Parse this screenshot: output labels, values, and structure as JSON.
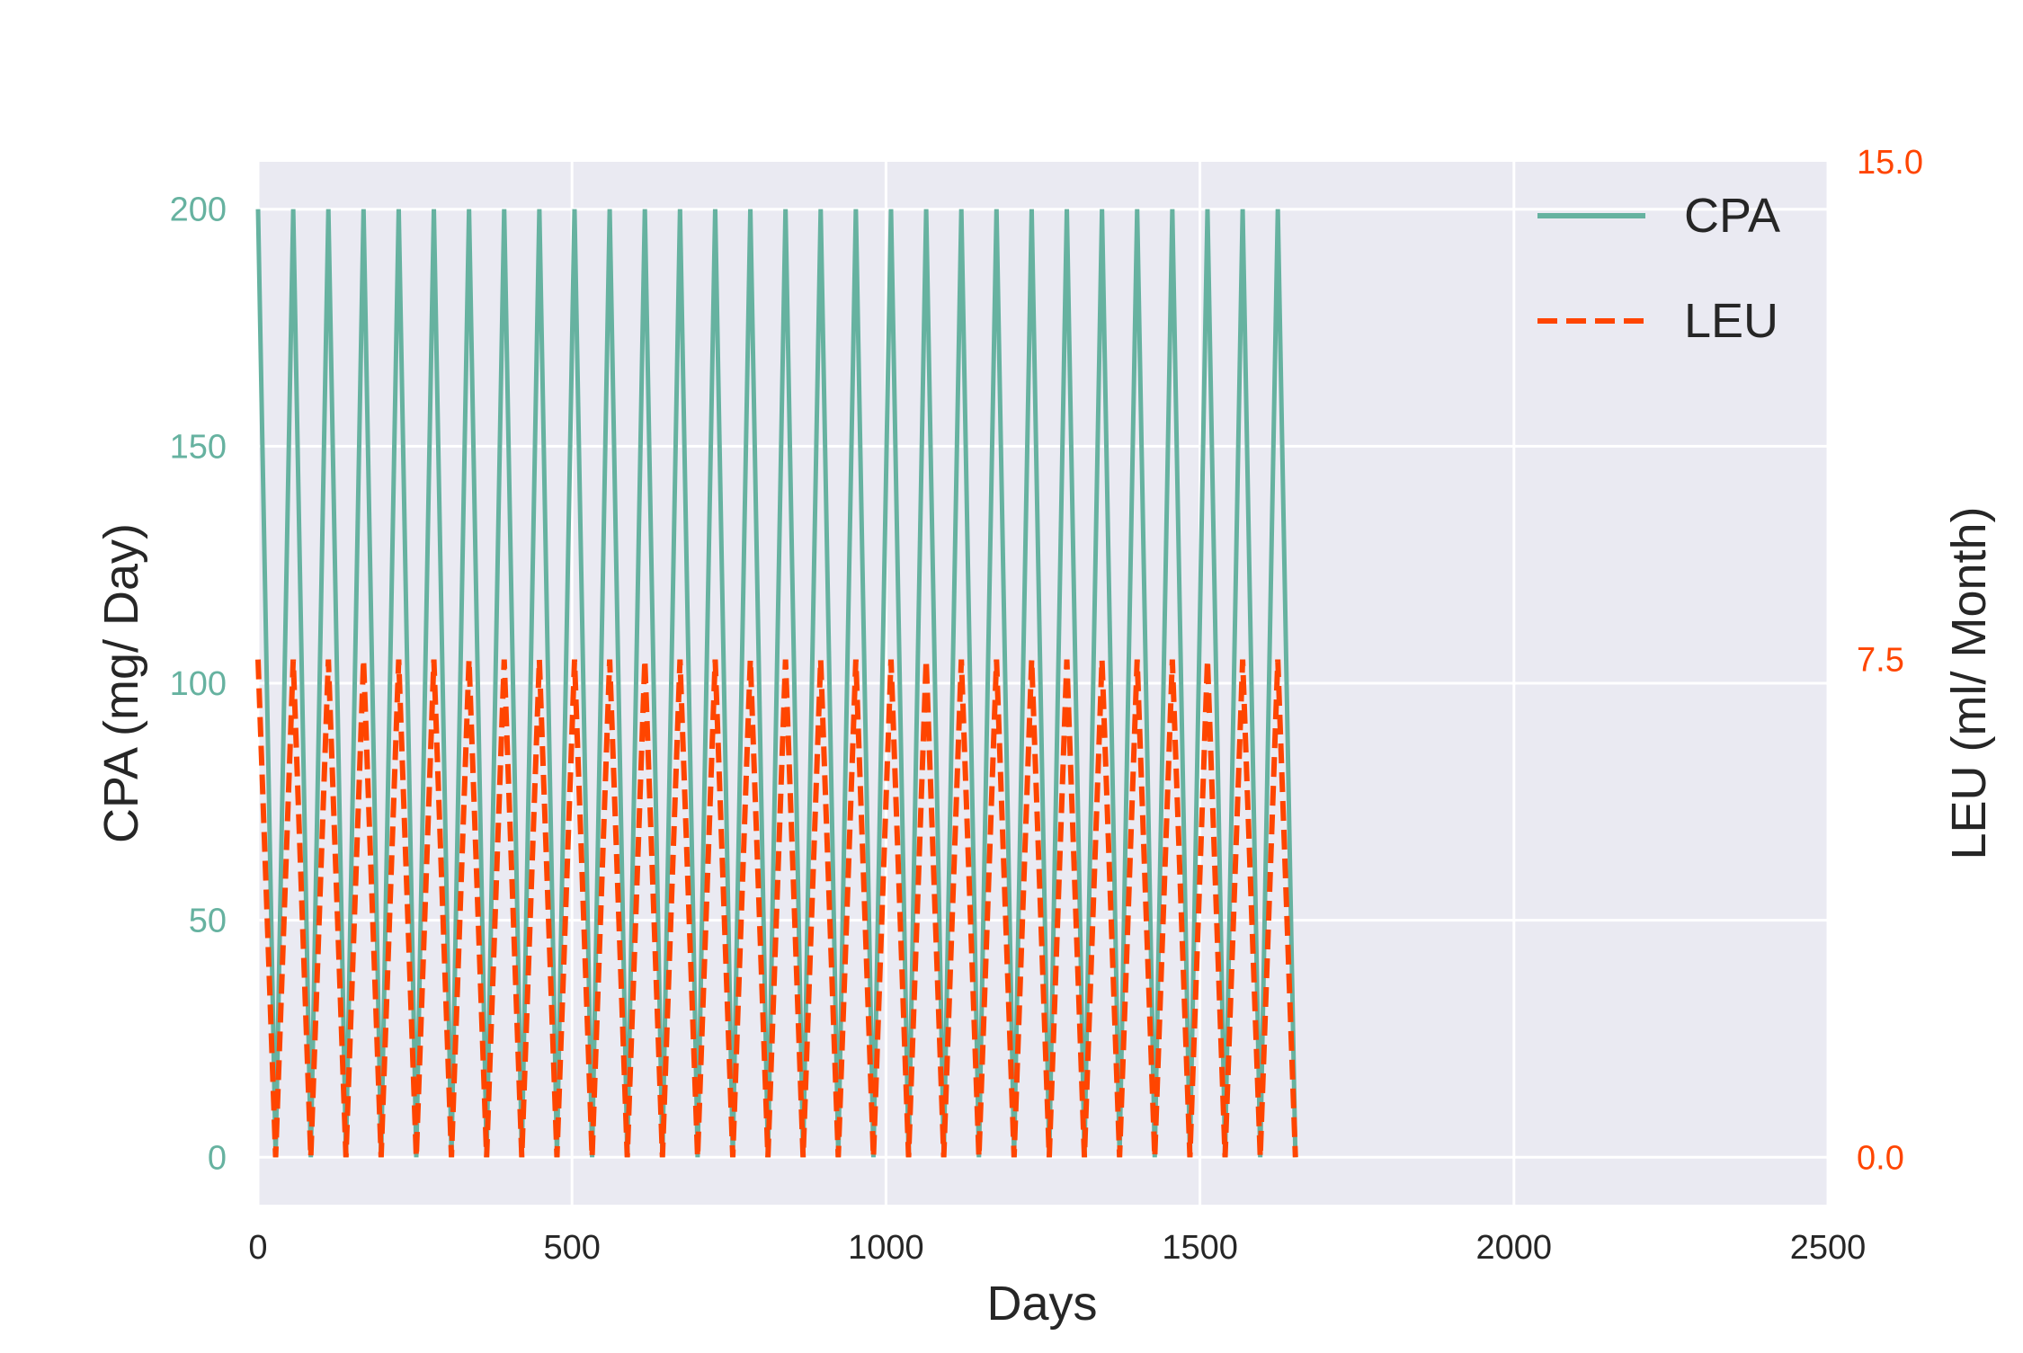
{
  "chart_data": {
    "type": "line",
    "title": "",
    "xlabel": "Days",
    "ylabel_left": "CPA (mg/ Day)",
    "ylabel_right": "LEU (ml/ Month)",
    "xlim": [
      0,
      2500
    ],
    "ylim_left": [
      -10,
      210
    ],
    "ylim_right": [
      0,
      15
    ],
    "x_ticks": [
      0,
      500,
      1000,
      1500,
      2000,
      2500
    ],
    "x_tick_labels": [
      "0",
      "500",
      "1000",
      "1500",
      "2000",
      "2500"
    ],
    "y_left_ticks": [
      0,
      50,
      100,
      150,
      200
    ],
    "y_left_tick_labels": [
      "0",
      "50",
      "100",
      "150",
      "200"
    ],
    "y_right_ticks": [
      0.0,
      7.5,
      15.0
    ],
    "y_right_tick_labels": [
      "0.0",
      "7.5",
      "15.0"
    ],
    "grid": true,
    "legend_position": "top-right",
    "colors": {
      "background": "#eaeaf2",
      "grid": "#ffffff",
      "cpa": "#66b2a0",
      "leu": "#ff4500",
      "tick_text": "#262626"
    },
    "series": [
      {
        "name": "CPA",
        "axis": "left",
        "style": "solid",
        "x": [
          0,
          28,
          56,
          84,
          112,
          140,
          168,
          196,
          224,
          252,
          280,
          308,
          336,
          364,
          392,
          420,
          448,
          476,
          504,
          532,
          560,
          588,
          616,
          644,
          672,
          700,
          728,
          756,
          784,
          812,
          840,
          868,
          896,
          924,
          952,
          980,
          1008,
          1036,
          1064,
          1092,
          1120,
          1148,
          1176,
          1204,
          1232,
          1260,
          1288,
          1316,
          1344,
          1372,
          1400,
          1428,
          1456,
          1484,
          1512,
          1540,
          1568,
          1596,
          1624,
          1652
        ],
        "y": [
          200,
          0,
          200,
          0,
          200,
          0,
          200,
          0,
          200,
          0,
          200,
          0,
          200,
          0,
          200,
          0,
          200,
          0,
          200,
          0,
          200,
          0,
          200,
          0,
          200,
          0,
          200,
          0,
          200,
          0,
          200,
          0,
          200,
          0,
          200,
          0,
          200,
          0,
          200,
          0,
          200,
          0,
          200,
          0,
          200,
          0,
          200,
          0,
          200,
          0,
          200,
          0,
          200,
          0,
          200,
          0,
          200,
          0,
          200,
          0
        ]
      },
      {
        "name": "LEU",
        "axis": "right",
        "style": "dashed",
        "x": [
          0,
          28,
          56,
          84,
          112,
          140,
          168,
          196,
          224,
          252,
          280,
          308,
          336,
          364,
          392,
          420,
          448,
          476,
          504,
          532,
          560,
          588,
          616,
          644,
          672,
          700,
          728,
          756,
          784,
          812,
          840,
          868,
          896,
          924,
          952,
          980,
          1008,
          1036,
          1064,
          1092,
          1120,
          1148,
          1176,
          1204,
          1232,
          1260,
          1288,
          1316,
          1344,
          1372,
          1400,
          1428,
          1456,
          1484,
          1512,
          1540,
          1568,
          1596,
          1624,
          1652
        ],
        "y": [
          7.5,
          0,
          7.5,
          0,
          7.5,
          0,
          7.5,
          0,
          7.5,
          0,
          7.5,
          0,
          7.5,
          0,
          7.5,
          0,
          7.5,
          0,
          7.5,
          0,
          7.5,
          0,
          7.5,
          0,
          7.5,
          0,
          7.5,
          0,
          7.5,
          0,
          7.5,
          0,
          7.5,
          0,
          7.5,
          0,
          7.5,
          0,
          7.5,
          0,
          7.5,
          0,
          7.5,
          0,
          7.5,
          0,
          7.5,
          0,
          7.5,
          0,
          7.5,
          0,
          7.5,
          0,
          7.5,
          0,
          7.5,
          0,
          7.5,
          0
        ]
      }
    ]
  }
}
